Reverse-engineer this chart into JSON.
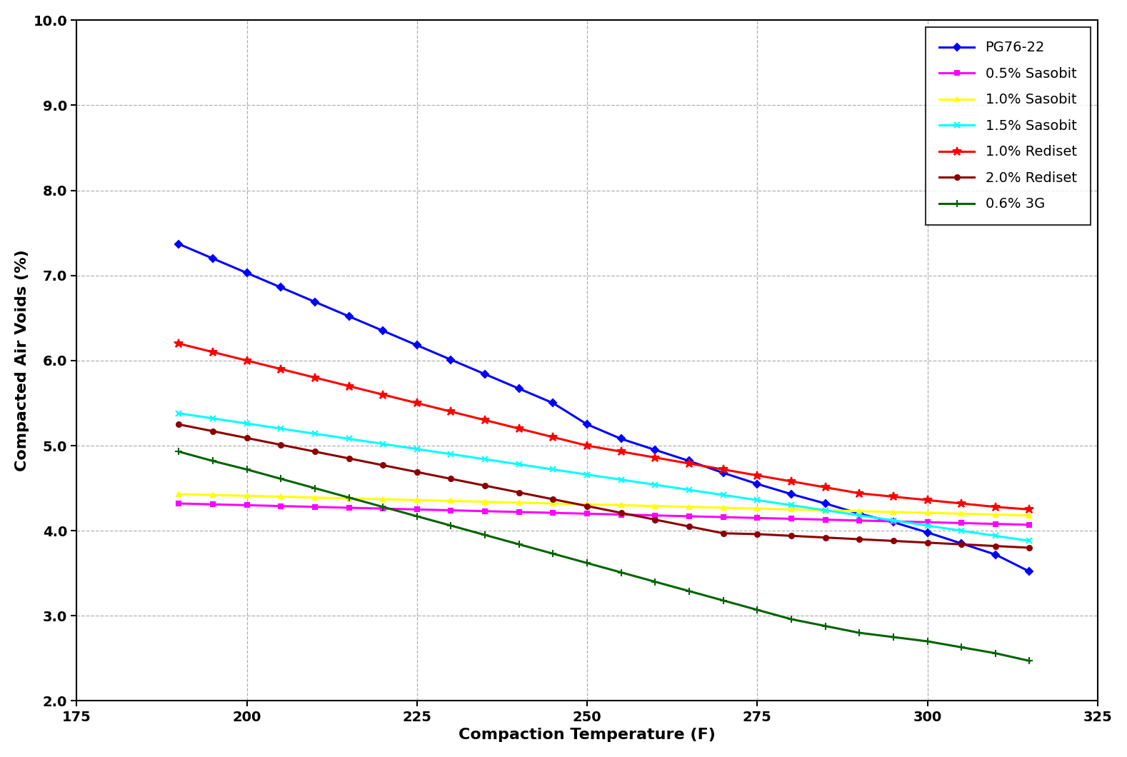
{
  "series": [
    {
      "label": "PG76-22",
      "color": "#0000FF",
      "marker": "D",
      "markersize": 5,
      "linewidth": 2.2,
      "x": [
        190,
        195,
        200,
        205,
        210,
        215,
        220,
        225,
        230,
        235,
        240,
        245,
        250,
        255,
        260,
        265,
        270,
        275,
        280,
        285,
        290,
        295,
        300,
        305,
        310,
        315
      ],
      "y": [
        7.37,
        7.2,
        7.03,
        6.86,
        6.69,
        6.52,
        6.35,
        6.18,
        6.01,
        5.84,
        5.67,
        5.5,
        5.25,
        5.08,
        4.95,
        4.82,
        4.68,
        4.55,
        4.43,
        4.32,
        4.2,
        4.1,
        3.98,
        3.85,
        3.72,
        3.52
      ]
    },
    {
      "label": "0.5% Sasobit",
      "color": "#FF00FF",
      "marker": "s",
      "markersize": 5,
      "linewidth": 2.2,
      "x": [
        190,
        195,
        200,
        205,
        210,
        215,
        220,
        225,
        230,
        235,
        240,
        245,
        250,
        255,
        260,
        265,
        270,
        275,
        280,
        285,
        290,
        295,
        300,
        305,
        310,
        315
      ],
      "y": [
        4.32,
        4.31,
        4.3,
        4.29,
        4.28,
        4.27,
        4.26,
        4.25,
        4.24,
        4.23,
        4.22,
        4.21,
        4.2,
        4.19,
        4.18,
        4.17,
        4.16,
        4.15,
        4.14,
        4.13,
        4.12,
        4.11,
        4.1,
        4.09,
        4.08,
        4.07
      ]
    },
    {
      "label": "1.0% Sasobit",
      "color": "#FFFF00",
      "marker": "^",
      "markersize": 5,
      "linewidth": 2.2,
      "x": [
        190,
        195,
        200,
        205,
        210,
        215,
        220,
        225,
        230,
        235,
        240,
        245,
        250,
        255,
        260,
        265,
        270,
        275,
        280,
        285,
        290,
        295,
        300,
        305,
        310,
        315
      ],
      "y": [
        4.43,
        4.42,
        4.41,
        4.4,
        4.39,
        4.38,
        4.37,
        4.36,
        4.35,
        4.34,
        4.33,
        4.32,
        4.31,
        4.3,
        4.29,
        4.28,
        4.27,
        4.26,
        4.25,
        4.24,
        4.23,
        4.22,
        4.21,
        4.2,
        4.19,
        4.18
      ]
    },
    {
      "label": "1.5% Sasobit",
      "color": "#00FFFF",
      "marker": "x",
      "markersize": 6,
      "linewidth": 2.2,
      "x": [
        190,
        195,
        200,
        205,
        210,
        215,
        220,
        225,
        230,
        235,
        240,
        245,
        250,
        255,
        260,
        265,
        270,
        275,
        280,
        285,
        290,
        295,
        300,
        305,
        310,
        315
      ],
      "y": [
        5.38,
        5.32,
        5.26,
        5.2,
        5.14,
        5.08,
        5.02,
        4.96,
        4.9,
        4.84,
        4.78,
        4.72,
        4.66,
        4.6,
        4.54,
        4.48,
        4.42,
        4.36,
        4.3,
        4.24,
        4.18,
        4.12,
        4.06,
        4.0,
        3.94,
        3.88
      ]
    },
    {
      "label": "1.0% Rediset",
      "color": "#FF0000",
      "marker": "*",
      "markersize": 9,
      "linewidth": 2.2,
      "x": [
        190,
        195,
        200,
        205,
        210,
        215,
        220,
        225,
        230,
        235,
        240,
        245,
        250,
        255,
        260,
        265,
        270,
        275,
        280,
        285,
        290,
        295,
        300,
        305,
        310,
        315
      ],
      "y": [
        6.2,
        6.1,
        6.0,
        5.9,
        5.8,
        5.7,
        5.6,
        5.5,
        5.4,
        5.3,
        5.2,
        5.1,
        5.0,
        4.93,
        4.86,
        4.79,
        4.72,
        4.65,
        4.58,
        4.51,
        4.44,
        4.4,
        4.36,
        4.32,
        4.28,
        4.25
      ]
    },
    {
      "label": "2.0% Rediset",
      "color": "#8B0000",
      "marker": "o",
      "markersize": 5,
      "linewidth": 2.2,
      "x": [
        190,
        195,
        200,
        205,
        210,
        215,
        220,
        225,
        230,
        235,
        240,
        245,
        250,
        255,
        260,
        265,
        270,
        275,
        280,
        285,
        290,
        295,
        300,
        305,
        310,
        315
      ],
      "y": [
        5.25,
        5.17,
        5.09,
        5.01,
        4.93,
        4.85,
        4.77,
        4.69,
        4.61,
        4.53,
        4.45,
        4.37,
        4.29,
        4.21,
        4.13,
        4.05,
        3.97,
        3.96,
        3.94,
        3.92,
        3.9,
        3.88,
        3.86,
        3.84,
        3.82,
        3.8
      ]
    },
    {
      "label": "0.6% 3G",
      "color": "#006400",
      "marker": "+",
      "markersize": 7,
      "linewidth": 2.2,
      "x": [
        190,
        195,
        200,
        205,
        210,
        215,
        220,
        225,
        230,
        235,
        240,
        245,
        250,
        255,
        260,
        265,
        270,
        275,
        280,
        285,
        290,
        295,
        300,
        305,
        310,
        315
      ],
      "y": [
        4.93,
        4.82,
        4.72,
        4.61,
        4.5,
        4.39,
        4.28,
        4.17,
        4.06,
        3.95,
        3.84,
        3.73,
        3.62,
        3.51,
        3.4,
        3.29,
        3.18,
        3.07,
        2.96,
        2.88,
        2.8,
        2.75,
        2.7,
        2.63,
        2.56,
        2.47
      ]
    }
  ],
  "xlabel": "Compaction Temperature (F)",
  "ylabel": "Compacted Air Voids (%)",
  "xlim": [
    175,
    325
  ],
  "ylim": [
    2.0,
    10.0
  ],
  "xticks": [
    175,
    200,
    225,
    250,
    275,
    300,
    325
  ],
  "yticks": [
    2.0,
    3.0,
    4.0,
    5.0,
    6.0,
    7.0,
    8.0,
    9.0,
    10.0
  ],
  "grid": true,
  "grid_linestyle": "--",
  "grid_color": "#b0b0b0",
  "legend_loc": "upper right",
  "background_color": "#ffffff",
  "xlabel_fontsize": 16,
  "ylabel_fontsize": 16,
  "tick_fontsize": 14,
  "legend_fontsize": 14
}
